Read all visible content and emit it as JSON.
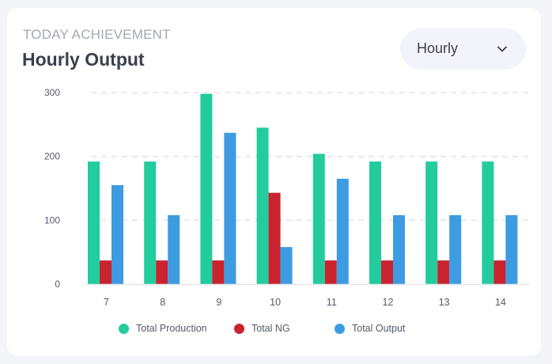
{
  "header": {
    "subtitle": "TODAY ACHIEVEMENT",
    "title": "Hourly Output"
  },
  "dropdown": {
    "selected": "Hourly",
    "icon": "chevron-down-icon"
  },
  "chart_data": {
    "type": "bar",
    "categories": [
      "7",
      "8",
      "9",
      "10",
      "11",
      "12",
      "13",
      "14"
    ],
    "series": [
      {
        "name": "Total Production",
        "color": "#22cc9d",
        "values": [
          192,
          192,
          298,
          245,
          204,
          192,
          192,
          192
        ]
      },
      {
        "name": "Total NG",
        "color": "#c8232f",
        "values": [
          37,
          37,
          37,
          143,
          37,
          37,
          37,
          37
        ]
      },
      {
        "name": "Total Output",
        "color": "#3d9be2",
        "values": [
          155,
          108,
          237,
          58,
          165,
          108,
          108,
          108
        ]
      }
    ],
    "y_ticks": [
      0,
      100,
      200,
      300
    ],
    "ylim": [
      0,
      300
    ],
    "grid": true,
    "legend": "bottom"
  }
}
